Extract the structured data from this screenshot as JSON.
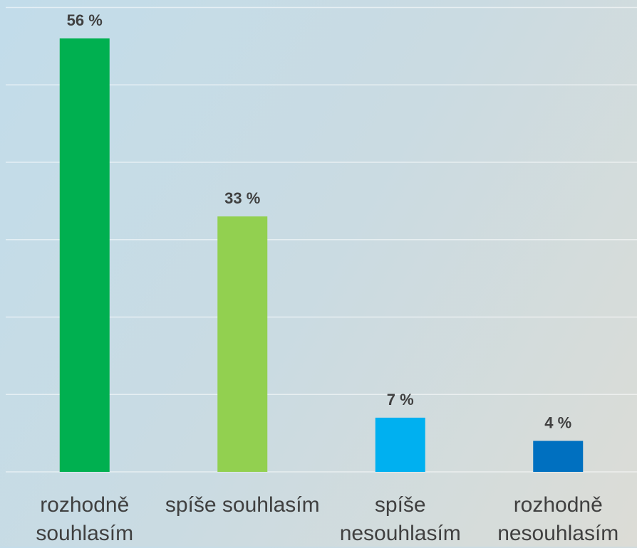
{
  "chart_data": {
    "type": "bar",
    "categories": [
      "rozhodně souhlasím",
      "spíše souhlasím",
      "spíše nesouhlasím",
      "rozhodně nesouhlasím"
    ],
    "values": [
      56,
      33,
      7,
      4
    ],
    "value_labels": [
      "56 %",
      "33 %",
      "7 %",
      "4 %"
    ],
    "colors": [
      "#00b050",
      "#92d050",
      "#00b0f0",
      "#0070c0"
    ],
    "ylim": [
      0,
      60
    ],
    "yticks": [
      0,
      10,
      20,
      30,
      40,
      50,
      60
    ],
    "grid": true
  }
}
